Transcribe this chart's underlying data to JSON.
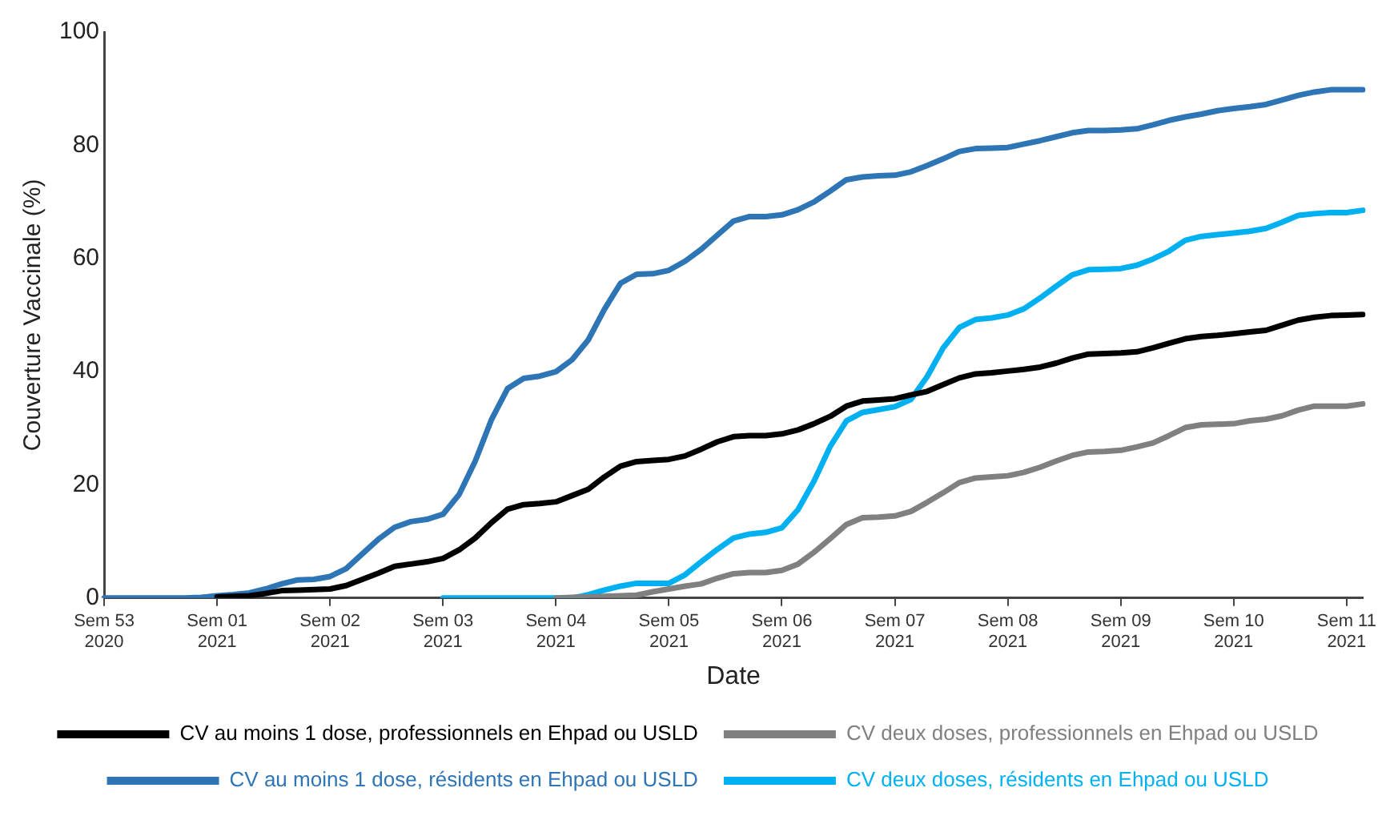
{
  "chart_data": {
    "type": "line",
    "xlabel": "Date",
    "ylabel": "Couverture Vaccinale (%)",
    "categories": [
      "Sem 53\n2020",
      null,
      null,
      null,
      null,
      null,
      null,
      "Sem 01\n2021",
      null,
      null,
      null,
      null,
      null,
      null,
      "Sem 02\n2021",
      null,
      null,
      null,
      null,
      null,
      null,
      "Sem 03\n2021",
      null,
      null,
      null,
      null,
      null,
      null,
      "Sem 04\n2021",
      null,
      null,
      null,
      null,
      null,
      null,
      "Sem 05\n2021",
      null,
      null,
      null,
      null,
      null,
      null,
      "Sem 06\n2021",
      null,
      null,
      null,
      null,
      null,
      null,
      "Sem 07\n2021",
      null,
      null,
      null,
      null,
      null,
      null,
      "Sem 08\n2021",
      null,
      null,
      null,
      null,
      null,
      null,
      "Sem 09\n2021",
      null,
      null,
      null,
      null,
      null,
      null,
      "Sem 10\n2021",
      null,
      null,
      null,
      null,
      null,
      null,
      "Sem 11\n2021",
      null
    ],
    "ylim": [
      0,
      100
    ],
    "yticks": [
      0,
      20,
      40,
      60,
      80,
      100
    ],
    "grid": false,
    "legend": "bottom",
    "marker": "none",
    "line_style": "solid",
    "series": [
      {
        "name": "CV au moins 1 dose, professionnels en Ehpad ou USLD",
        "color": "#000000",
        "values": [
          null,
          null,
          null,
          null,
          null,
          null,
          null,
          0.2,
          0.3,
          0.4,
          0.8,
          1.3,
          1.4,
          1.5,
          1.6,
          2.2,
          3.3,
          4.4,
          5.6,
          6,
          6.4,
          7,
          8.5,
          10.6,
          13.3,
          15.7,
          16.5,
          16.7,
          17,
          18.1,
          19.2,
          21.4,
          23.3,
          24.1,
          24.3,
          24.5,
          25.1,
          26.3,
          27.6,
          28.5,
          28.7,
          28.7,
          29,
          29.7,
          30.8,
          32.1,
          33.9,
          34.8,
          35,
          35.2,
          35.9,
          36.5,
          37.7,
          38.9,
          39.6,
          39.8,
          40.1,
          40.4,
          40.8,
          41.5,
          42.4,
          43.1,
          43.2,
          43.3,
          43.5,
          44.2,
          45,
          45.8,
          46.2,
          46.4,
          46.7,
          47,
          47.3,
          48.2,
          49.1,
          49.6,
          49.9,
          50,
          50.1
        ]
      },
      {
        "name": "CV deux doses, professionnels en Ehpad ou USLD",
        "color": "#808080",
        "values": [
          null,
          null,
          null,
          null,
          null,
          null,
          null,
          null,
          null,
          null,
          null,
          null,
          null,
          null,
          null,
          null,
          null,
          null,
          null,
          null,
          null,
          null,
          null,
          null,
          null,
          null,
          null,
          null,
          0,
          0.1,
          0.2,
          0.3,
          0.4,
          0.5,
          1.1,
          1.6,
          2.1,
          2.5,
          3.5,
          4.3,
          4.5,
          4.5,
          4.9,
          6,
          8.1,
          10.5,
          13,
          14.2,
          14.3,
          14.5,
          15.3,
          16.9,
          18.6,
          20.4,
          21.2,
          21.4,
          21.6,
          22.2,
          23.1,
          24.2,
          25.2,
          25.8,
          25.9,
          26.1,
          26.7,
          27.4,
          28.7,
          30.1,
          30.6,
          30.7,
          30.8,
          31.3,
          31.6,
          32.2,
          33.2,
          33.9,
          33.9,
          33.9,
          34.3
        ]
      },
      {
        "name": "CV au moins 1 dose, résidents en Ehpad ou USLD",
        "color": "#2e75b6",
        "values": [
          0,
          0,
          0,
          0,
          0,
          0,
          0.1,
          0.4,
          0.6,
          0.9,
          1.6,
          2.5,
          3.2,
          3.3,
          3.8,
          5.2,
          7.8,
          10.4,
          12.5,
          13.5,
          13.9,
          14.8,
          18.3,
          24.2,
          31.5,
          37,
          38.8,
          39.2,
          40,
          42.1,
          45.6,
          51,
          55.6,
          57.2,
          57.3,
          57.9,
          59.5,
          61.6,
          64.1,
          66.6,
          67.4,
          67.4,
          67.7,
          68.6,
          70,
          71.9,
          73.9,
          74.4,
          74.6,
          74.7,
          75.3,
          76.4,
          77.6,
          78.9,
          79.4,
          79.5,
          79.6,
          80.2,
          80.8,
          81.5,
          82.2,
          82.6,
          82.6,
          82.7,
          82.9,
          83.6,
          84.4,
          85,
          85.5,
          86.1,
          86.5,
          86.8,
          87.2,
          88,
          88.8,
          89.4,
          89.8,
          89.8,
          89.8
        ]
      },
      {
        "name": "CV deux doses, résidents en Ehpad ou USLD",
        "color": "#00b0f0",
        "values": [
          null,
          null,
          null,
          null,
          null,
          null,
          null,
          null,
          null,
          null,
          null,
          null,
          null,
          null,
          null,
          null,
          null,
          null,
          null,
          null,
          null,
          0,
          0,
          0,
          0,
          0,
          0,
          0,
          0,
          0,
          0.6,
          1.4,
          2.1,
          2.6,
          2.6,
          2.6,
          4.1,
          6.4,
          8.6,
          10.6,
          11.3,
          11.6,
          12.4,
          15.6,
          20.7,
          26.8,
          31.3,
          32.8,
          33.3,
          33.8,
          35.1,
          39.1,
          44.2,
          47.8,
          49.2,
          49.5,
          50,
          51.1,
          53,
          55.1,
          57.1,
          58,
          58.1,
          58.2,
          58.8,
          59.9,
          61.3,
          63.2,
          63.9,
          64.2,
          64.5,
          64.8,
          65.3,
          66.4,
          67.6,
          67.9,
          68.1,
          68.1,
          68.5
        ]
      }
    ]
  }
}
